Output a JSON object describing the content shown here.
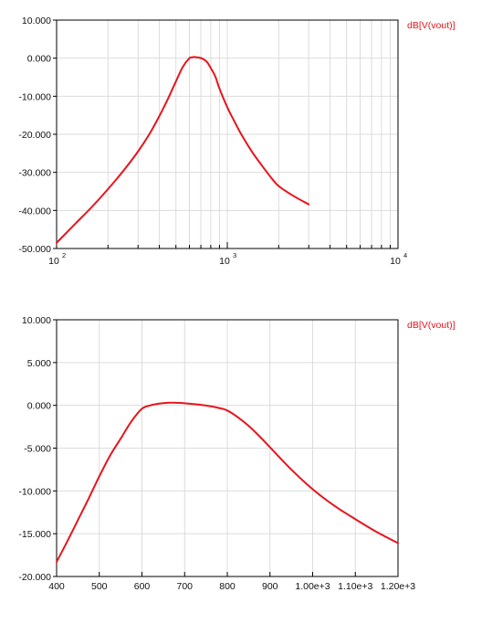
{
  "chart_data": [
    {
      "type": "line",
      "x_scale": "log",
      "xlim": [
        100,
        10000
      ],
      "ylim": [
        -50,
        10
      ],
      "grid": true,
      "legend_position": "top-right",
      "y_ticks": [
        10,
        0,
        -10,
        -20,
        -30,
        -40,
        -50
      ],
      "y_tick_labels": [
        "10.000",
        "0.000",
        "-10.000",
        "-20.000",
        "-30.000",
        "-40.000",
        "-50.000"
      ],
      "x_ticks": [
        100,
        1000,
        10000
      ],
      "x_tick_labels": [
        {
          "base": "10",
          "exp": "2"
        },
        {
          "base": "10",
          "exp": "3"
        },
        {
          "base": "10",
          "exp": "4"
        }
      ],
      "series": [
        {
          "name": "dB[V(vout)]",
          "color": "#e8141b",
          "x": [
            100,
            130,
            160,
            200,
            250,
            300,
            350,
            400,
            450,
            500,
            550,
            600,
            620,
            640,
            660,
            690,
            720,
            760,
            800,
            850,
            900,
            1000,
            1100,
            1200,
            1400,
            1600,
            1800,
            2000,
            2400,
            3000
          ],
          "y": [
            -48.5,
            -43.3,
            -39.2,
            -34.4,
            -29.2,
            -24.5,
            -19.9,
            -15.2,
            -10.6,
            -6.1,
            -2.2,
            0.0,
            0.2,
            0.3,
            0.25,
            0.1,
            -0.2,
            -1.0,
            -2.6,
            -4.8,
            -8.0,
            -12.9,
            -16.6,
            -19.8,
            -24.7,
            -28.3,
            -31.3,
            -33.6,
            -36.0,
            -38.4
          ]
        }
      ]
    },
    {
      "type": "line",
      "x_scale": "linear",
      "xlim": [
        400,
        1200
      ],
      "ylim": [
        -20,
        10
      ],
      "grid": true,
      "legend_position": "top-right",
      "y_ticks": [
        10,
        5,
        0,
        -5,
        -10,
        -15,
        -20
      ],
      "y_tick_labels": [
        "10.000",
        "5.000",
        "0.000",
        "-5.000",
        "-10.000",
        "-15.000",
        "-20.000"
      ],
      "x_ticks": [
        400,
        500,
        600,
        700,
        800,
        900,
        1000,
        1100,
        1200
      ],
      "x_tick_labels": [
        "400",
        "500",
        "600",
        "700",
        "800",
        "900",
        "1.00e+3",
        "1.10e+3",
        "1.20e+3"
      ],
      "series": [
        {
          "name": "dB[V(vout)]",
          "color": "#e8141b",
          "x": [
            400,
            425,
            450,
            475,
            500,
            525,
            550,
            575,
            600,
            620,
            640,
            660,
            680,
            700,
            720,
            740,
            760,
            780,
            800,
            825,
            850,
            875,
            900,
            950,
            1000,
            1050,
            1100,
            1150,
            1200
          ],
          "y": [
            -18.3,
            -15.9,
            -13.4,
            -10.9,
            -8.3,
            -5.9,
            -3.9,
            -1.9,
            -0.4,
            0.0,
            0.2,
            0.3,
            0.3,
            0.25,
            0.15,
            0.05,
            -0.1,
            -0.3,
            -0.6,
            -1.4,
            -2.4,
            -3.6,
            -4.9,
            -7.5,
            -9.8,
            -11.7,
            -13.3,
            -14.8,
            -16.1
          ]
        }
      ]
    }
  ]
}
